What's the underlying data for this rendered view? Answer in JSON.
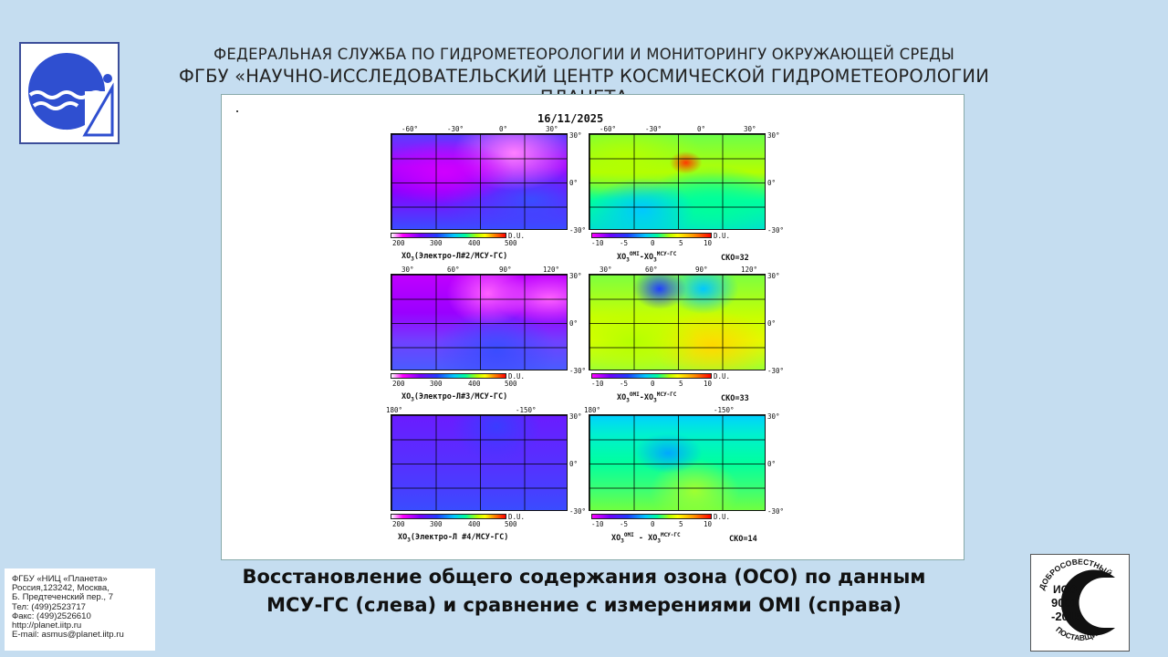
{
  "header": {
    "line1": "ФЕДЕРАЛЬНАЯ СЛУЖБА ПО ГИДРОМЕТЕОРОЛОГИИ И МОНИТОРИНГУ ОКРУЖАЮЩЕЙ СРЕДЫ",
    "line2": "ФГБУ «НАУЧНО-ИССЛЕДОВАТЕЛЬСКИЙ ЦЕНТР КОСМИЧЕСКОЙ ГИДРОМЕТЕОРОЛОГИИ «ПЛАНЕТА»"
  },
  "figure": {
    "date": "16/11/2025",
    "du": "D.U.",
    "ozone_ticks": [
      "200",
      "300",
      "400",
      "500"
    ],
    "diff_ticks": [
      "-10",
      "-5",
      "0",
      "5",
      "10"
    ],
    "lat_labels": [
      "30°",
      "0°",
      "-30°"
    ],
    "rows": [
      {
        "lon_labels": [
          "-60°",
          "-30°",
          "0°",
          "30°"
        ],
        "left_caption": {
          "prefix": "XO",
          "sub": "3",
          "text": "(Электро-Л#2/МСУ-ГС)"
        },
        "right_caption": {
          "a": "XO",
          "a_sub": "3",
          "a_sup": "OMI",
          "sep": "-",
          "b": "XO",
          "b_sub": "3",
          "b_sup": "МСУ-ГС"
        },
        "sko": "СКО=32"
      },
      {
        "lon_labels": [
          "30°",
          "60°",
          "90°",
          "120°"
        ],
        "left_caption": {
          "prefix": "XO",
          "sub": "3",
          "text": "(Электро-Л#3/МСУ-ГС)"
        },
        "right_caption": {
          "a": "XO",
          "a_sub": "3",
          "a_sup": "OMI",
          "sep": "-",
          "b": "XO",
          "b_sub": "3",
          "b_sup": "МСУ-ГС"
        },
        "sko": "СКО=33"
      },
      {
        "lon_labels": [
          "180°",
          "-150°"
        ],
        "left_caption": {
          "prefix": "XO",
          "sub": "3",
          "text": "(Электро-Л #4/МСУ-ГС)"
        },
        "right_caption": {
          "a": "XO",
          "a_sub": "3",
          "a_sup": "OMI",
          "sep": " - ",
          "b": "XO",
          "b_sub": "3",
          "b_sup": "МСУ-ГС"
        },
        "sko": "СКО=14"
      }
    ]
  },
  "contact": {
    "lines": [
      "ФГБУ «НИЦ «Планета»",
      "Россия,123242, Москва,",
      "Б. Предтеченский пер., 7",
      "Тел:   (499)2523717",
      "Факс: (499)2526610",
      "http://planet.iitp.ru",
      "E-mail: asmus@planet.iitp.ru"
    ]
  },
  "title": {
    "line1": "Восстановление общего содержания озона (ОСО) по данным",
    "line2": "МСУ-ГС (слева) и сравнение с измерениями OMI (справа)"
  },
  "iso_badge": {
    "top_text": "ДОБРОСОВЕСТНЫЙ",
    "line1": "ИСО",
    "line2": "9001",
    "line3": "-2015",
    "bottom_text": "ПОСТАВЩИК"
  },
  "colors": {
    "background": "#c5ddf0",
    "logo_blue": "#2f4fd0",
    "logo_border": "#3c4e9a"
  },
  "icons": {
    "logo": "planeta-logo-icon",
    "iso": "iso-9001-badge-icon"
  }
}
